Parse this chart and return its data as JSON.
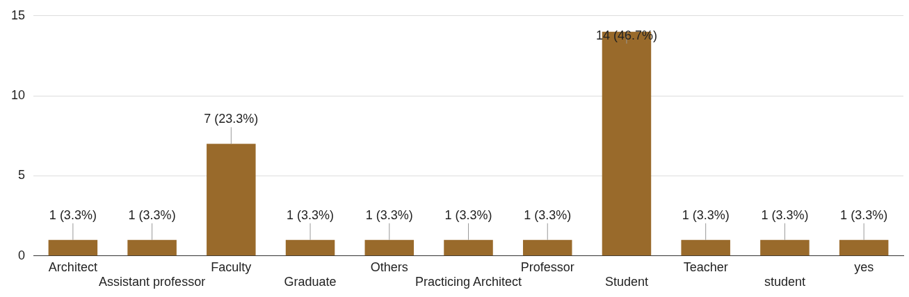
{
  "chart_data": {
    "type": "bar",
    "categories": [
      "Architect",
      "Assistant professor",
      "Faculty",
      "Graduate",
      "Others",
      "Practicing Architect",
      "Professor",
      "Student",
      "Teacher",
      "student",
      "yes"
    ],
    "values": [
      1,
      1,
      7,
      1,
      1,
      1,
      1,
      14,
      1,
      1,
      1
    ],
    "value_labels": [
      "1 (3.3%)",
      "1 (3.3%)",
      "7 (23.3%)",
      "1 (3.3%)",
      "1 (3.3%)",
      "1 (3.3%)",
      "1 (3.3%)",
      "14 (46.7%)",
      "1 (3.3%)",
      "1 (3.3%)",
      "1 (3.3%)"
    ],
    "color": "#996a2b",
    "ylim": [
      0,
      15
    ],
    "yticks": [
      0,
      5,
      10,
      15
    ],
    "grid": "y"
  }
}
